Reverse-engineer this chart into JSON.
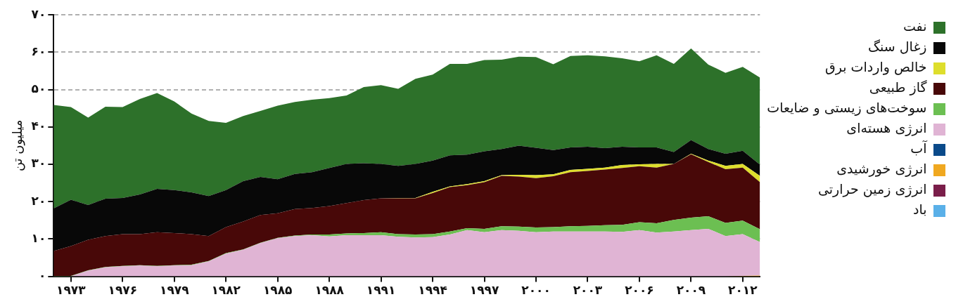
{
  "chart_data": {
    "type": "area",
    "stacked": true,
    "ylabel": "میلیون تن",
    "legend": "right",
    "grid": "y",
    "line_style": "dashed",
    "x": [
      1972,
      1973,
      1974,
      1975,
      1976,
      1977,
      1978,
      1979,
      1980,
      1981,
      1982,
      1983,
      1984,
      1985,
      1986,
      1987,
      1988,
      1989,
      1990,
      1991,
      1992,
      1993,
      1994,
      1995,
      1996,
      1997,
      1998,
      1999,
      2000,
      2001,
      2002,
      2003,
      2004,
      2005,
      2006,
      2007,
      2008,
      2009,
      2010,
      2011,
      2012,
      2013
    ],
    "xlim": [
      1972,
      2013
    ],
    "xticks": [
      {
        "value": 1973,
        "label": "۱۹۷۳"
      },
      {
        "value": 1976,
        "label": "۱۹۷۶"
      },
      {
        "value": 1979,
        "label": "۱۹۷۹"
      },
      {
        "value": 1982,
        "label": "۱۹۸۲"
      },
      {
        "value": 1985,
        "label": "۱۹۸۵"
      },
      {
        "value": 1988,
        "label": "۱۹۸۸"
      },
      {
        "value": 1991,
        "label": "۱۹۹۱"
      },
      {
        "value": 1994,
        "label": "۱۹۹۴"
      },
      {
        "value": 1997,
        "label": "۱۹۹۷"
      },
      {
        "value": 2000,
        "label": "۲۰۰۰"
      },
      {
        "value": 2003,
        "label": "۲۰۰۳"
      },
      {
        "value": 2006,
        "label": "۲۰۰۶"
      },
      {
        "value": 2009,
        "label": "۲۰۰۹"
      },
      {
        "value": 2012,
        "label": "۲۰۱۲"
      }
    ],
    "ylim": [
      0,
      70
    ],
    "yticks": [
      {
        "value": 0,
        "label": "۰"
      },
      {
        "value": 10,
        "label": "۱۰"
      },
      {
        "value": 20,
        "label": "۲۰"
      },
      {
        "value": 30,
        "label": "۳۰"
      },
      {
        "value": 40,
        "label": "۴۰"
      },
      {
        "value": 50,
        "label": "۵۰"
      },
      {
        "value": 60,
        "label": "۶۰"
      },
      {
        "value": 70,
        "label": "۷۰"
      }
    ],
    "series": [
      {
        "name": "باد",
        "color": "#5ab0e8",
        "values": [
          null,
          null,
          null,
          null,
          null,
          null,
          null,
          null,
          null,
          null,
          null,
          null,
          null,
          null,
          null,
          null,
          null,
          null,
          null,
          null,
          null,
          null,
          null,
          null,
          null,
          null,
          null,
          null,
          null,
          null,
          null,
          null,
          null,
          null,
          null,
          null,
          null,
          null,
          null,
          null,
          null,
          null
        ]
      },
      {
        "name": "انرژی زمین حرارتی",
        "color": "#7a1e4a",
        "values": [
          null,
          null,
          null,
          null,
          null,
          null,
          null,
          null,
          null,
          null,
          null,
          null,
          null,
          null,
          null,
          null,
          null,
          null,
          null,
          null,
          null,
          null,
          null,
          null,
          null,
          null,
          null,
          null,
          null,
          null,
          null,
          null,
          null,
          null,
          null,
          null,
          null,
          null,
          null,
          null,
          null,
          null
        ]
      },
      {
        "name": "انرژی خورشیدی",
        "color": "#f0a820",
        "values": [
          0,
          0,
          0,
          0,
          0,
          0,
          0,
          0,
          0,
          0,
          0,
          0,
          0,
          0,
          0,
          0,
          0,
          0,
          0,
          0,
          0,
          0,
          0,
          0,
          0,
          0,
          0,
          0,
          0,
          0,
          0,
          0,
          0,
          0,
          0,
          0,
          0,
          0,
          0,
          0,
          0.1,
          0.2
        ]
      },
      {
        "name": "آب",
        "color": "#0a4a8a",
        "values": [
          null,
          null,
          null,
          null,
          null,
          null,
          null,
          null,
          null,
          null,
          null,
          null,
          null,
          null,
          null,
          null,
          null,
          null,
          null,
          null,
          null,
          null,
          null,
          null,
          null,
          null,
          null,
          null,
          null,
          null,
          null,
          null,
          null,
          null,
          null,
          null,
          null,
          null,
          null,
          null,
          null,
          null
        ]
      },
      {
        "name": "انرژی هسته‌ای",
        "color": "#e0b4d4",
        "values": [
          0,
          0,
          1.5,
          2.4,
          2.7,
          2.9,
          2.7,
          2.9,
          3.0,
          4.0,
          6.1,
          7.1,
          8.9,
          10.2,
          10.8,
          11.0,
          10.7,
          11.0,
          11.0,
          11.0,
          10.6,
          10.4,
          10.5,
          11.2,
          12.4,
          11.8,
          12.4,
          12.2,
          11.8,
          12.0,
          12.0,
          12.0,
          12.0,
          11.9,
          12.4,
          11.7,
          12.0,
          12.4,
          12.7,
          10.8,
          11.2,
          9.0
        ]
      },
      {
        "name": "سوخت‌های زیستی و ضایعات",
        "color": "#6cbf52",
        "values": [
          0.1,
          0.1,
          0.1,
          0.1,
          0.1,
          0.1,
          0.1,
          0.1,
          0.1,
          0.1,
          0.1,
          0.1,
          0.1,
          0.1,
          0.1,
          0.2,
          0.5,
          0.5,
          0.6,
          0.8,
          0.7,
          0.8,
          0.8,
          0.8,
          0.5,
          0.9,
          1.0,
          1.1,
          1.3,
          1.2,
          1.4,
          1.5,
          1.7,
          1.9,
          2.1,
          2.5,
          3.1,
          3.3,
          3.4,
          3.5,
          3.6,
          3.4
        ]
      },
      {
        "name": "گاز طبیعی",
        "color": "#480808",
        "values": [
          6.7,
          8.0,
          8.2,
          8.3,
          8.5,
          8.3,
          9.0,
          8.6,
          8.2,
          6.7,
          7.0,
          7.5,
          7.4,
          6.6,
          7.1,
          7.1,
          7.6,
          8.1,
          8.8,
          9.1,
          9.6,
          9.7,
          11.0,
          11.9,
          11.5,
          12.5,
          13.5,
          13.4,
          13.2,
          13.6,
          14.5,
          14.7,
          14.9,
          15.2,
          15.0,
          14.9,
          15.0,
          17.0,
          14.5,
          14.4,
          14.2,
          12.6
        ]
      },
      {
        "name": "خالص واردات برق",
        "color": "#dede2c",
        "values": [
          0,
          0,
          0,
          0,
          0,
          0,
          0,
          0,
          0,
          0,
          0,
          0,
          0,
          0,
          0,
          0,
          0,
          0,
          0,
          0,
          0.1,
          0.1,
          0.3,
          0.2,
          0.3,
          0.3,
          0.2,
          0.5,
          0.8,
          0.5,
          0.6,
          0.6,
          0.5,
          0.8,
          0.5,
          1.0,
          0,
          0.1,
          0.4,
          0.9,
          1.0,
          1.7
        ]
      },
      {
        "name": "زغال سنگ",
        "color": "#080808",
        "values": [
          11.4,
          12.4,
          9.3,
          10.0,
          9.7,
          10.6,
          11.6,
          11.5,
          11.2,
          10.7,
          9.9,
          10.8,
          10.2,
          9.1,
          9.4,
          9.6,
          10.2,
          10.5,
          9.9,
          9.2,
          8.6,
          9.1,
          8.4,
          8.3,
          7.9,
          8.0,
          7.0,
          7.8,
          7.3,
          6.5,
          6.0,
          5.9,
          5.2,
          4.9,
          4.5,
          4.4,
          3.2,
          3.7,
          3.1,
          3.2,
          3.5,
          3.0
        ]
      },
      {
        "name": "نفت",
        "color": "#2d712a",
        "values": [
          27.7,
          24.8,
          23.4,
          24.6,
          24.3,
          25.6,
          25.7,
          23.7,
          21.1,
          20.1,
          18.0,
          17.4,
          17.7,
          19.7,
          19.3,
          19.4,
          18.7,
          18.3,
          20.4,
          21.1,
          20.6,
          22.8,
          23.0,
          24.5,
          24.3,
          24.4,
          23.9,
          23.8,
          24.3,
          23.0,
          24.5,
          24.5,
          24.6,
          23.7,
          23.1,
          24.7,
          23.6,
          24.5,
          22.6,
          21.7,
          22.5,
          23.3
        ]
      }
    ]
  }
}
